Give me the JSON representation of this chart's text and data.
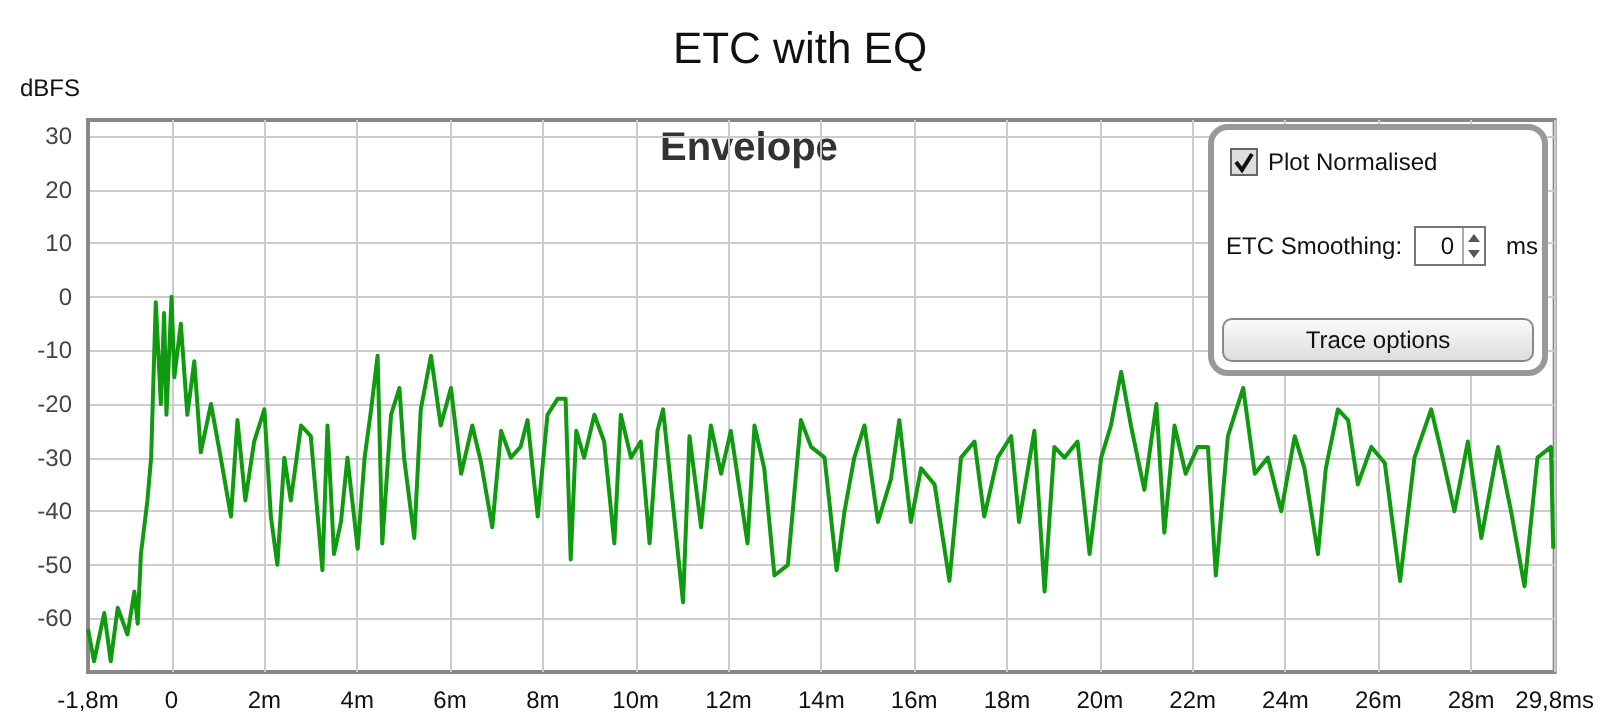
{
  "chart_data": {
    "type": "line",
    "title": "ETC with EQ",
    "ylabel": "dBFS",
    "annotations": [
      "Envelope",
      "Plot Normalised",
      "ETC Smoothing:",
      "0",
      "ms",
      "Trace options"
    ],
    "xlim": [
      -1.8,
      29.8
    ],
    "ylim": [
      -70,
      33
    ],
    "xticks": [
      {
        "value": -1.8,
        "label": "-1,8m"
      },
      0,
      {
        "value": 2,
        "label": "2m"
      },
      {
        "value": 4,
        "label": "4m"
      },
      {
        "value": 6,
        "label": "6m"
      },
      {
        "value": 8,
        "label": "8m"
      },
      {
        "value": 10,
        "label": "10m"
      },
      {
        "value": 12,
        "label": "12m"
      },
      {
        "value": 14,
        "label": "14m"
      },
      {
        "value": 16,
        "label": "16m"
      },
      {
        "value": 18,
        "label": "18m"
      },
      {
        "value": 20,
        "label": "20m"
      },
      {
        "value": 22,
        "label": "22m"
      },
      {
        "value": 24,
        "label": "24m"
      },
      {
        "value": 26,
        "label": "26m"
      },
      {
        "value": 28,
        "label": "28m"
      },
      {
        "value": 29.8,
        "label": "29,8ms"
      }
    ],
    "yticks": [
      -60,
      -50,
      -40,
      -30,
      -20,
      -10,
      0,
      10,
      20,
      30
    ],
    "grid": true,
    "marker": "none",
    "line_style": "solid",
    "x": [
      -1.8,
      -1.67,
      -1.45,
      -1.31,
      -1.16,
      -0.95,
      -0.8,
      -0.73,
      -0.66,
      -0.52,
      -0.44,
      -0.34,
      -0.23,
      -0.16,
      -0.11,
      0,
      0.06,
      0.2,
      0.34,
      0.49,
      0.63,
      0.85,
      1.06,
      1.28,
      1.42,
      1.59,
      1.78,
      2.0,
      2.14,
      2.28,
      2.43,
      2.57,
      2.79,
      3.0,
      3.25,
      3.36,
      3.5,
      3.65,
      3.79,
      4.01,
      4.16,
      4.3,
      4.44,
      4.54,
      4.73,
      4.91,
      5.01,
      5.23,
      5.37,
      5.59,
      5.8,
      6.02,
      6.24,
      6.48,
      6.67,
      6.91,
      7.1,
      7.31,
      7.52,
      7.67,
      7.89,
      8.1,
      8.32,
      8.49,
      8.6,
      8.72,
      8.89,
      9.11,
      9.32,
      9.54,
      9.68,
      9.9,
      10.11,
      10.3,
      10.47,
      10.59,
      10.83,
      11.02,
      11.16,
      11.41,
      11.62,
      11.84,
      12.05,
      12.41,
      12.56,
      12.77,
      12.99,
      13.28,
      13.56,
      13.78,
      14.07,
      14.33,
      14.5,
      14.71,
      14.93,
      15.22,
      15.5,
      15.68,
      15.93,
      16.15,
      16.44,
      16.76,
      17.01,
      17.3,
      17.51,
      17.8,
      18.09,
      18.26,
      18.59,
      18.81,
      19.02,
      19.24,
      19.52,
      19.78,
      20.03,
      20.24,
      20.46,
      20.67,
      20.96,
      21.22,
      21.39,
      21.61,
      21.85,
      22.11,
      22.33,
      22.5,
      22.76,
      23.09,
      23.34,
      23.62,
      23.91,
      24.2,
      24.41,
      24.7,
      24.87,
      25.13,
      25.35,
      25.56,
      25.85,
      26.14,
      26.47,
      26.78,
      27.14,
      27.36,
      27.64,
      27.93,
      28.22,
      28.58,
      28.86,
      29.15,
      29.43,
      29.72,
      29.77
    ],
    "series": [
      {
        "color": "#109a10",
        "values": [
          -62,
          -68,
          -59,
          -68,
          -58,
          -63,
          -55,
          -61,
          -48,
          -38,
          -30,
          -1,
          -20,
          -3,
          -22,
          0,
          -15,
          -5,
          -22,
          -12,
          -29,
          -20,
          -30,
          -41,
          -23,
          -38,
          -27,
          -21,
          -41,
          -50,
          -30,
          -38,
          -24,
          -26,
          -51,
          -24,
          -48,
          -42,
          -30,
          -47,
          -30,
          -21,
          -11,
          -46,
          -22,
          -17,
          -30,
          -45,
          -21,
          -11,
          -24,
          -17,
          -33,
          -24,
          -31,
          -43,
          -25,
          -30,
          -28,
          -23,
          -41,
          -22,
          -19,
          -19,
          -49,
          -25,
          -30,
          -22,
          -27,
          -46,
          -22,
          -30,
          -27,
          -46,
          -25,
          -21,
          -41,
          -57,
          -26,
          -43,
          -24,
          -33,
          -25,
          -46,
          -24,
          -32,
          -52,
          -50,
          -23,
          -28,
          -30,
          -51,
          -40,
          -30,
          -24,
          -42,
          -34,
          -23,
          -42,
          -32,
          -35,
          -53,
          -30,
          -27,
          -41,
          -30,
          -26,
          -42,
          -25,
          -55,
          -28,
          -30,
          -27,
          -48,
          -30,
          -24,
          -14,
          -24,
          -36,
          -20,
          -44,
          -24,
          -33,
          -28,
          -28,
          -52,
          -26,
          -17,
          -33,
          -30,
          -40,
          -26,
          -32,
          -48,
          -32,
          -21,
          -23,
          -35,
          -28,
          -31,
          -53,
          -30,
          -21,
          -29,
          -40,
          -27,
          -45,
          -28,
          -40,
          -54,
          -30,
          -28,
          -47
        ]
      }
    ]
  }
}
